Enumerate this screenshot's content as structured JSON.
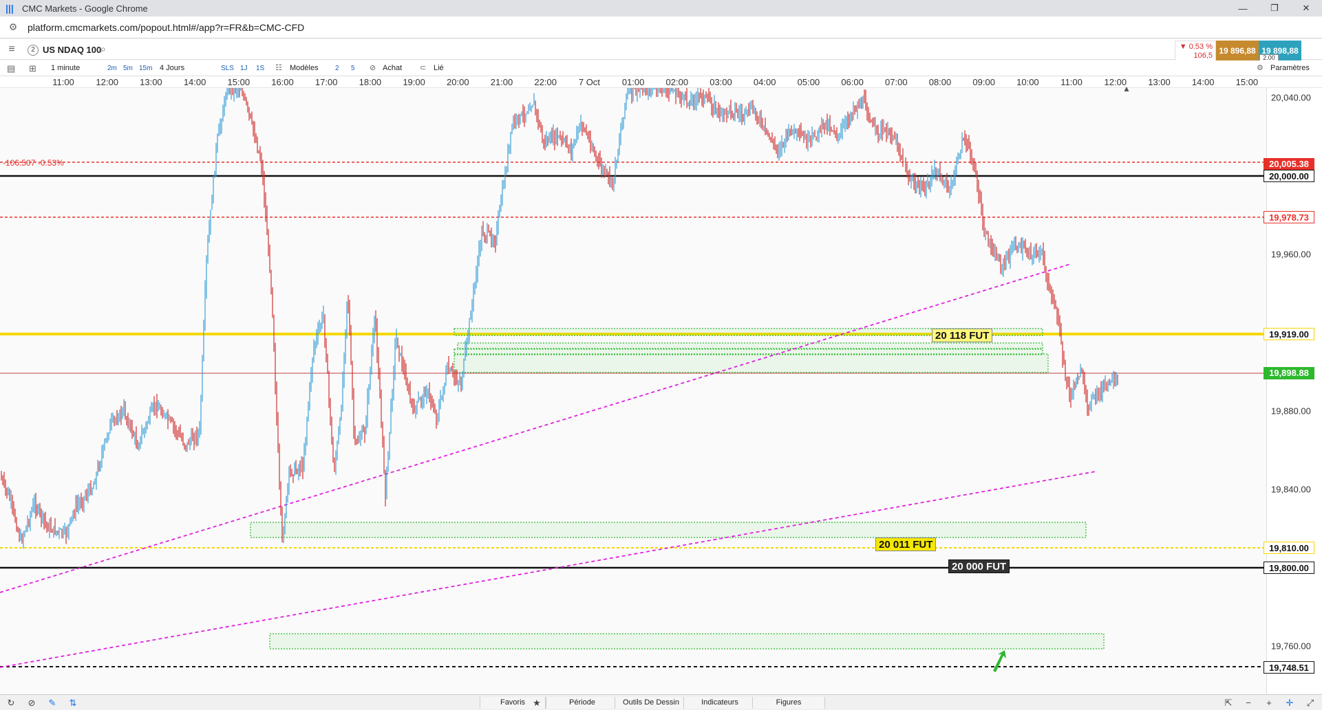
{
  "window": {
    "title": "CMC Markets - Google Chrome",
    "controls": [
      "—",
      "❐",
      "✕"
    ]
  },
  "browser": {
    "url": "platform.cmcmarkets.com/popout.html#/app?r=FR&b=CMC-CFD"
  },
  "instrument": {
    "index": "2",
    "name": "US NDAQ 100",
    "change_pct": "▼ 0.53 %",
    "change_pts": "106,5",
    "sell": "19 896,88",
    "buy": "19 898,88",
    "spread": "2.00"
  },
  "toolbar": {
    "interval": "1 minute",
    "quick_intervals": [
      "2m",
      "5m",
      "15m"
    ],
    "period": "4 Jours",
    "sl_buttons": [
      "SLS",
      "1J",
      "1S"
    ],
    "templates_label": "Modèles",
    "num_buttons": [
      "2",
      "5"
    ],
    "buy_label": "Achat",
    "linked_label": "Lié",
    "settings_label": "Paramètres"
  },
  "time_axis": [
    "11:00",
    "12:00",
    "13:00",
    "14:00",
    "15:00",
    "16:00",
    "17:00",
    "18:00",
    "19:00",
    "20:00",
    "21:00",
    "22:00",
    "7 Oct",
    "01:00",
    "02:00",
    "03:00",
    "04:00",
    "05:00",
    "06:00",
    "07:00",
    "08:00",
    "09:00",
    "10:00",
    "11:00",
    "12:00",
    "13:00",
    "14:00",
    "15:00"
  ],
  "price_axis": [
    "20,040.00",
    "19,960.00",
    "19,880.00",
    "19,840.00",
    "19,760.00"
  ],
  "level_badges": {
    "red_top": "20,005.38",
    "black_top": "20,000.00",
    "red_mid": "19,978.73",
    "yellow_mid": "19,919.00",
    "current": "19,898.88",
    "yellow_low": "19,810.00",
    "black_low": "19,800.00",
    "black_bottom": "19,748.51"
  },
  "colors": {
    "red": "#e8302a",
    "yellow": "#f5d800",
    "green": "#2eb82e",
    "magenta": "#e020e0",
    "bull": "#3aa0d8",
    "bear": "#d03030"
  },
  "annotations": {
    "label_1": "20 118 FUT",
    "label_2": "20 011 FUT",
    "label_3": "20 000 FUT",
    "change_label": "-106.507 -0.53%"
  },
  "footer": {
    "favorites": "Favoris",
    "period": "Période",
    "drawing_tools": "Outils De Dessin",
    "indicators": "Indicateurs",
    "figures": "Figures"
  }
}
